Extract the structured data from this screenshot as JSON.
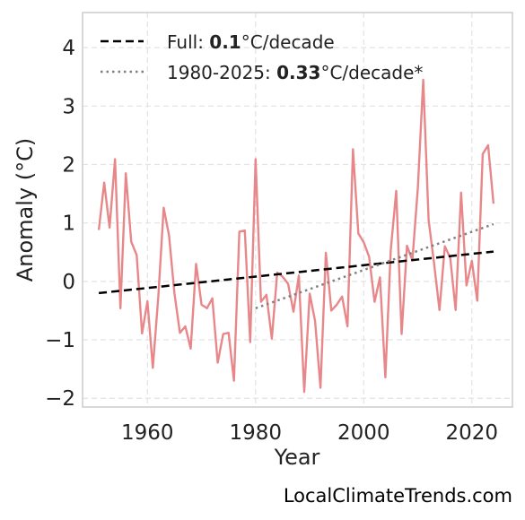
{
  "chart_data": {
    "type": "line",
    "xlabel": "Year",
    "ylabel": "Anomaly (°C)",
    "xlim": [
      1948,
      2027.5
    ],
    "ylim": [
      -2.15,
      4.6
    ],
    "x_ticks": [
      1960,
      1980,
      2000,
      2020
    ],
    "y_ticks": [
      -2,
      -1,
      0,
      1,
      2,
      3,
      4
    ],
    "y_tick_labels": [
      "−2",
      "−1",
      "0",
      "1",
      "2",
      "3",
      "4"
    ],
    "grid": true,
    "legend_position": "top-left",
    "series": [
      {
        "color": "#e8878a",
        "x": [
          1951,
          1952,
          1953,
          1954,
          1955,
          1956,
          1957,
          1958,
          1959,
          1960,
          1961,
          1962,
          1963,
          1964,
          1965,
          1966,
          1967,
          1968,
          1969,
          1970,
          1971,
          1972,
          1973,
          1974,
          1975,
          1976,
          1977,
          1978,
          1979,
          1980,
          1981,
          1982,
          1983,
          1984,
          1985,
          1986,
          1987,
          1988,
          1989,
          1990,
          1991,
          1992,
          1993,
          1994,
          1995,
          1996,
          1997,
          1998,
          1999,
          2000,
          2001,
          2002,
          2003,
          2004,
          2005,
          2006,
          2007,
          2008,
          2009,
          2010,
          2011,
          2012,
          2013,
          2014,
          2015,
          2016,
          2017,
          2018,
          2019,
          2020,
          2021,
          2022,
          2023,
          2024
        ],
        "y": [
          0.88,
          1.69,
          0.92,
          2.09,
          -0.46,
          1.85,
          0.68,
          0.45,
          -0.89,
          -0.34,
          -1.48,
          -0.26,
          1.26,
          0.78,
          -0.21,
          -0.88,
          -0.77,
          -1.15,
          0.3,
          -0.4,
          -0.46,
          -0.29,
          -1.39,
          -0.9,
          -0.88,
          -1.7,
          0.85,
          0.87,
          -1.04,
          2.09,
          -0.35,
          -0.23,
          -0.98,
          0.15,
          0.08,
          -0.04,
          -0.52,
          0.1,
          -1.89,
          -0.21,
          -0.68,
          -1.82,
          0.49,
          -0.5,
          -0.4,
          -0.26,
          -0.77,
          2.26,
          0.82,
          0.67,
          0.42,
          -0.35,
          0.07,
          -1.64,
          0.53,
          1.55,
          -0.9,
          0.61,
          0.36,
          1.6,
          3.45,
          1.05,
          0.32,
          -0.49,
          0.6,
          0.4,
          -0.49,
          1.52,
          -0.07,
          0.35,
          -0.33,
          2.18,
          2.33,
          1.33
        ]
      },
      {
        "name": "Full trend",
        "color": "#000000",
        "style": "dashed",
        "x": [
          1951,
          2024
        ],
        "y": [
          -0.2,
          0.51
        ]
      },
      {
        "name": "1980-2025 trend",
        "color": "#808080",
        "style": "dotted",
        "x": [
          1980,
          2024
        ],
        "y": [
          -0.46,
          0.98
        ]
      }
    ],
    "legend": [
      {
        "prefix": "Full: ",
        "value": "0.1",
        "suffix": "°C/decade"
      },
      {
        "prefix": "1980-2025: ",
        "value": "0.33",
        "suffix": "°C/decade*"
      }
    ],
    "watermark": "LocalClimateTrends.com"
  }
}
